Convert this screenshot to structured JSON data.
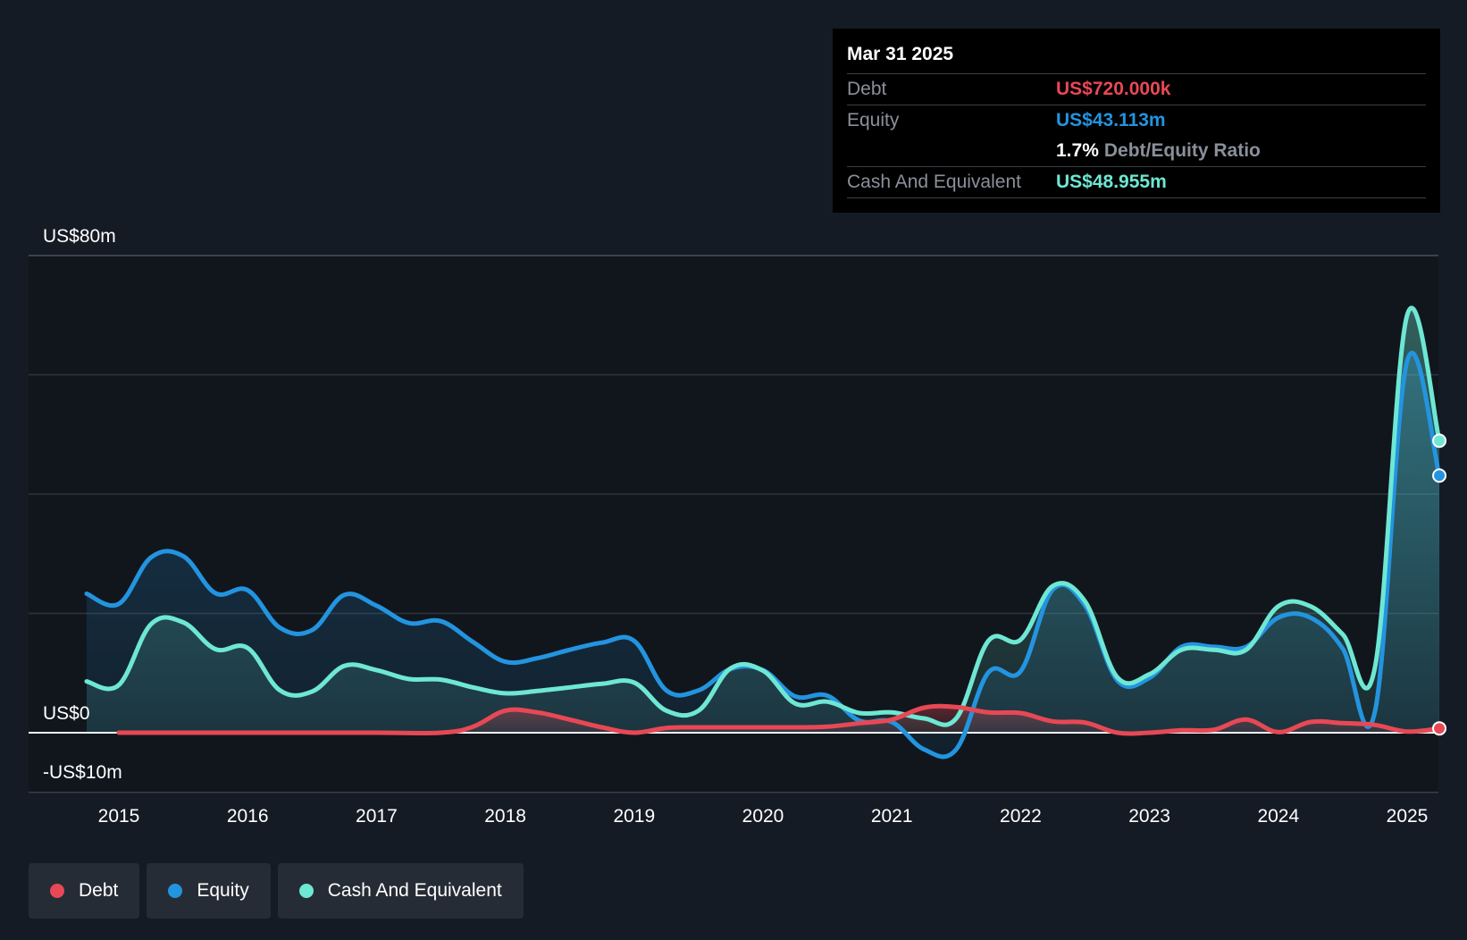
{
  "colors": {
    "background": "#151b24",
    "debt": "#e84855",
    "equity": "#2394df",
    "cash": "#6ee7d3",
    "grid": "#2e343d"
  },
  "tooltip": {
    "date": "Mar 31 2025",
    "debt_label": "Debt",
    "debt_value": "US$720.000k",
    "equity_label": "Equity",
    "equity_value": "US$43.113m",
    "ratio_value": "1.7%",
    "ratio_label": "Debt/Equity Ratio",
    "cash_label": "Cash And Equivalent",
    "cash_value": "US$48.955m"
  },
  "legend": [
    {
      "name": "Debt",
      "color": "#e84855"
    },
    {
      "name": "Equity",
      "color": "#2394df"
    },
    {
      "name": "Cash And Equivalent",
      "color": "#6ee7d3"
    }
  ],
  "chart_data": {
    "type": "area",
    "title": "",
    "xlabel": "",
    "ylabel": "",
    "unit": "US$m",
    "xlim": [
      2014.3,
      2025.25
    ],
    "ylim": [
      -10,
      80
    ],
    "y_tick_labels": [
      {
        "value": 80,
        "label": "US$80m"
      },
      {
        "value": 0,
        "label": "US$0"
      },
      {
        "value": -10,
        "label": "-US$10m"
      }
    ],
    "gridlines": [
      80,
      60,
      40,
      20,
      0
    ],
    "x_ticks": [
      {
        "value": 2015,
        "label": "2015"
      },
      {
        "value": 2016,
        "label": "2016"
      },
      {
        "value": 2017,
        "label": "2017"
      },
      {
        "value": 2018,
        "label": "2018"
      },
      {
        "value": 2019,
        "label": "2019"
      },
      {
        "value": 2020,
        "label": "2020"
      },
      {
        "value": 2021,
        "label": "2021"
      },
      {
        "value": 2022,
        "label": "2022"
      },
      {
        "value": 2023,
        "label": "2023"
      },
      {
        "value": 2024,
        "label": "2024"
      },
      {
        "value": 2025,
        "label": "2025"
      }
    ],
    "series": [
      {
        "name": "Equity",
        "color": "#2394df",
        "points": [
          [
            2014.75,
            23.3
          ],
          [
            2015.0,
            21.6
          ],
          [
            2015.25,
            29.4
          ],
          [
            2015.5,
            29.6
          ],
          [
            2015.75,
            23.4
          ],
          [
            2016.0,
            23.9
          ],
          [
            2016.25,
            17.6
          ],
          [
            2016.5,
            17.2
          ],
          [
            2016.75,
            23.1
          ],
          [
            2017.0,
            21.3
          ],
          [
            2017.25,
            18.4
          ],
          [
            2017.5,
            18.7
          ],
          [
            2017.75,
            15.2
          ],
          [
            2018.0,
            11.9
          ],
          [
            2018.25,
            12.5
          ],
          [
            2018.5,
            13.9
          ],
          [
            2018.75,
            15.1
          ],
          [
            2019.0,
            15.4
          ],
          [
            2019.25,
            7.1
          ],
          [
            2019.5,
            7.1
          ],
          [
            2019.75,
            10.7
          ],
          [
            2020.0,
            10.5
          ],
          [
            2020.25,
            6.1
          ],
          [
            2020.5,
            6.2
          ],
          [
            2020.75,
            2.0
          ],
          [
            2021.0,
            1.8
          ],
          [
            2021.25,
            -2.8
          ],
          [
            2021.5,
            -2.8
          ],
          [
            2021.75,
            10.1
          ],
          [
            2022.0,
            10.3
          ],
          [
            2022.25,
            24.0
          ],
          [
            2022.5,
            21.3
          ],
          [
            2022.75,
            8.8
          ],
          [
            2023.0,
            9.2
          ],
          [
            2023.25,
            14.4
          ],
          [
            2023.5,
            14.4
          ],
          [
            2023.75,
            14.4
          ],
          [
            2024.0,
            19.3
          ],
          [
            2024.25,
            19.3
          ],
          [
            2024.5,
            14.1
          ],
          [
            2024.75,
            3.5
          ],
          [
            2025.0,
            62.3
          ],
          [
            2025.25,
            43.113
          ]
        ]
      },
      {
        "name": "Cash And Equivalent",
        "color": "#6ee7d3",
        "points": [
          [
            2014.75,
            8.6
          ],
          [
            2015.0,
            8.0
          ],
          [
            2015.25,
            18.2
          ],
          [
            2015.5,
            18.5
          ],
          [
            2015.75,
            14.0
          ],
          [
            2016.0,
            14.2
          ],
          [
            2016.25,
            7.1
          ],
          [
            2016.5,
            6.9
          ],
          [
            2016.75,
            11.2
          ],
          [
            2017.0,
            10.5
          ],
          [
            2017.25,
            9.0
          ],
          [
            2017.5,
            8.9
          ],
          [
            2017.75,
            7.6
          ],
          [
            2018.0,
            6.6
          ],
          [
            2018.25,
            7.0
          ],
          [
            2018.5,
            7.6
          ],
          [
            2018.75,
            8.2
          ],
          [
            2019.0,
            8.4
          ],
          [
            2019.25,
            3.7
          ],
          [
            2019.5,
            3.7
          ],
          [
            2019.75,
            10.8
          ],
          [
            2020.0,
            10.4
          ],
          [
            2020.25,
            4.9
          ],
          [
            2020.5,
            5.2
          ],
          [
            2020.75,
            3.3
          ],
          [
            2021.0,
            3.4
          ],
          [
            2021.25,
            2.4
          ],
          [
            2021.5,
            2.4
          ],
          [
            2021.75,
            15.4
          ],
          [
            2022.0,
            15.6
          ],
          [
            2022.25,
            24.6
          ],
          [
            2022.5,
            22.0
          ],
          [
            2022.75,
            9.3
          ],
          [
            2023.0,
            9.8
          ],
          [
            2023.25,
            13.9
          ],
          [
            2023.5,
            13.9
          ],
          [
            2023.75,
            13.9
          ],
          [
            2024.0,
            21.2
          ],
          [
            2024.25,
            21.2
          ],
          [
            2024.5,
            16.5
          ],
          [
            2024.75,
            10.9
          ],
          [
            2025.0,
            70.0
          ],
          [
            2025.25,
            48.955
          ]
        ]
      },
      {
        "name": "Debt",
        "color": "#e84855",
        "points": [
          [
            2015.0,
            0.0
          ],
          [
            2016.0,
            0.0
          ],
          [
            2017.0,
            0.0
          ],
          [
            2017.5,
            0.0
          ],
          [
            2017.75,
            1.0
          ],
          [
            2018.0,
            3.7
          ],
          [
            2018.25,
            3.4
          ],
          [
            2018.5,
            2.2
          ],
          [
            2018.75,
            0.9
          ],
          [
            2019.0,
            0.0
          ],
          [
            2019.25,
            0.8
          ],
          [
            2019.5,
            0.9
          ],
          [
            2019.75,
            0.9
          ],
          [
            2020.0,
            0.9
          ],
          [
            2020.25,
            0.9
          ],
          [
            2020.5,
            1.0
          ],
          [
            2020.75,
            1.6
          ],
          [
            2021.0,
            2.2
          ],
          [
            2021.25,
            4.2
          ],
          [
            2021.5,
            4.3
          ],
          [
            2021.75,
            3.4
          ],
          [
            2022.0,
            3.3
          ],
          [
            2022.25,
            1.9
          ],
          [
            2022.5,
            1.7
          ],
          [
            2022.75,
            0.0
          ],
          [
            2023.0,
            0.0
          ],
          [
            2023.25,
            0.4
          ],
          [
            2023.5,
            0.5
          ],
          [
            2023.75,
            2.2
          ],
          [
            2024.0,
            0.1
          ],
          [
            2024.25,
            1.8
          ],
          [
            2024.5,
            1.6
          ],
          [
            2024.75,
            1.3
          ],
          [
            2025.0,
            0.2
          ],
          [
            2025.25,
            0.72
          ]
        ]
      }
    ]
  }
}
